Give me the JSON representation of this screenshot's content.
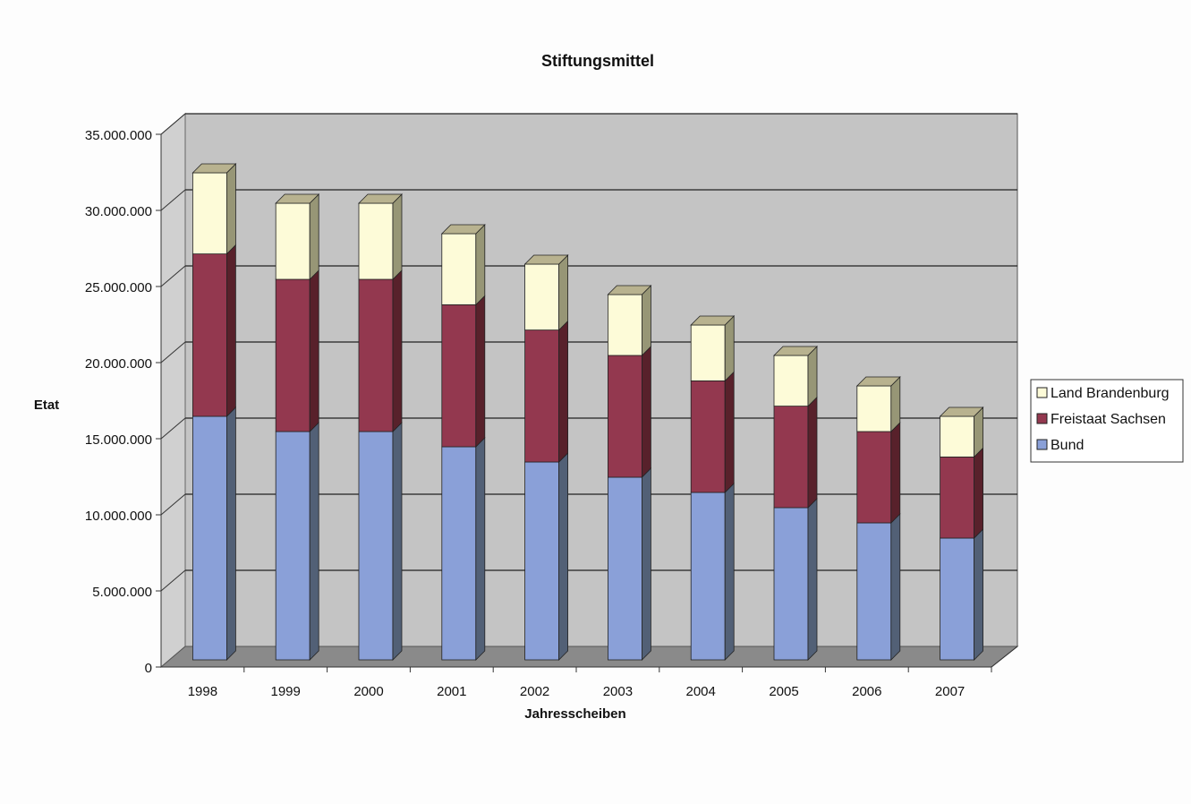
{
  "chart_data": {
    "type": "bar",
    "stacked": true,
    "style": "3d-stacked-column",
    "title": "Stiftungsmittel",
    "xlabel": "Jahresscheiben",
    "ylabel": "Etat",
    "ylim": [
      0,
      35000000
    ],
    "yticks": [
      0,
      5000000,
      10000000,
      15000000,
      20000000,
      25000000,
      30000000,
      35000000
    ],
    "ytick_labels": [
      "0",
      "5.000.000",
      "10.000.000",
      "15.000.000",
      "20.000.000",
      "25.000.000",
      "30.000.000",
      "35.000.000"
    ],
    "grid": true,
    "legend_position": "right",
    "categories": [
      "1998",
      "1999",
      "2000",
      "2001",
      "2002",
      "2003",
      "2004",
      "2005",
      "2006",
      "2007"
    ],
    "series": [
      {
        "name": "Bund",
        "color": "#8aa0d8",
        "values": [
          16000000,
          15000000,
          15000000,
          14000000,
          13000000,
          12000000,
          11000000,
          10000000,
          9000000,
          8000000
        ]
      },
      {
        "name": "Freistaat Sachsen",
        "color": "#93384f",
        "values": [
          10670000,
          10000000,
          10000000,
          9330000,
          8670000,
          8000000,
          7330000,
          6670000,
          6000000,
          5330000
        ]
      },
      {
        "name": "Land Brandenburg",
        "color": "#fdfbd8",
        "values": [
          5330000,
          5000000,
          5000000,
          4670000,
          4330000,
          4000000,
          3670000,
          3330000,
          3000000,
          2670000
        ]
      }
    ]
  }
}
